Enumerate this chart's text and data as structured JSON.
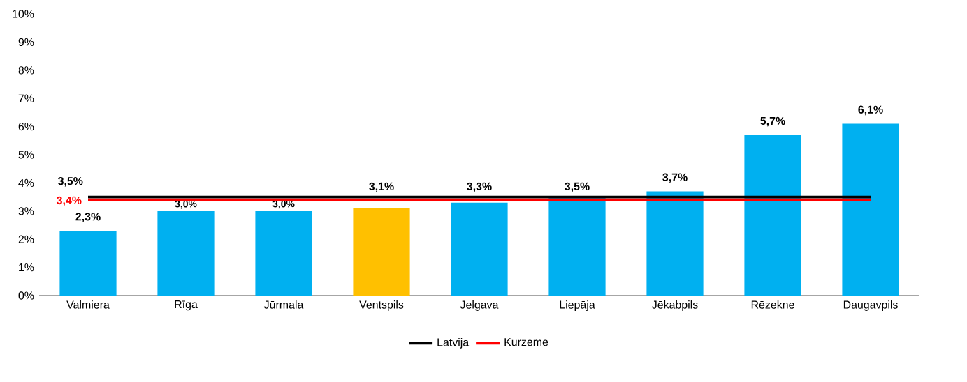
{
  "chart_data": {
    "type": "bar",
    "categories": [
      "Valmiera",
      "Rīga",
      "Jūrmala",
      "Ventspils",
      "Jelgava",
      "Liepāja",
      "Jēkabpils",
      "Rēzekne",
      "Daugavpils"
    ],
    "series": [
      {
        "colors": [
          "#00b0f0",
          "#00b0f0",
          "#00b0f0",
          "#ffc000",
          "#00b0f0",
          "#00b0f0",
          "#00b0f0",
          "#00b0f0",
          "#00b0f0"
        ],
        "values": [
          2.3,
          3.0,
          3.0,
          3.1,
          3.3,
          3.5,
          3.7,
          5.7,
          6.1
        ],
        "value_labels": [
          "2,3%",
          "3,0%",
          "3,0%",
          "3,1%",
          "3,3%",
          "3,5%",
          "3,7%",
          "5,7%",
          "6,1%"
        ]
      },
      {
        "type": "line",
        "name": "Latvija",
        "color": "#000000",
        "values": [
          3.5,
          3.5,
          3.5,
          3.5,
          3.5,
          3.5,
          3.5,
          3.5,
          3.5
        ],
        "value_labels": [
          "3,5%",
          null,
          null,
          null,
          null,
          null,
          null,
          null,
          null
        ]
      },
      {
        "type": "line",
        "name": "Kurzeme",
        "color": "#ff0000",
        "values": [
          3.4,
          3.4,
          3.4,
          3.4,
          3.4,
          3.4,
          3.4,
          3.4,
          3.4
        ],
        "value_labels": [
          "3,4%",
          null,
          null,
          null,
          null,
          null,
          null,
          null,
          null
        ]
      }
    ],
    "ylim": [
      0,
      10
    ],
    "yticks": [
      {
        "value": 0,
        "label": "0%"
      },
      {
        "value": 1,
        "label": "1%"
      },
      {
        "value": 2,
        "label": "2%"
      },
      {
        "value": 3,
        "label": "3%"
      },
      {
        "value": 4,
        "label": "4%"
      },
      {
        "value": 5,
        "label": "5%"
      },
      {
        "value": 6,
        "label": "6%"
      },
      {
        "value": 7,
        "label": "7%"
      },
      {
        "value": 8,
        "label": "8%"
      },
      {
        "value": 9,
        "label": "9%"
      },
      {
        "value": 10,
        "label": "10%"
      }
    ],
    "grid": false,
    "legend": "bottom"
  }
}
